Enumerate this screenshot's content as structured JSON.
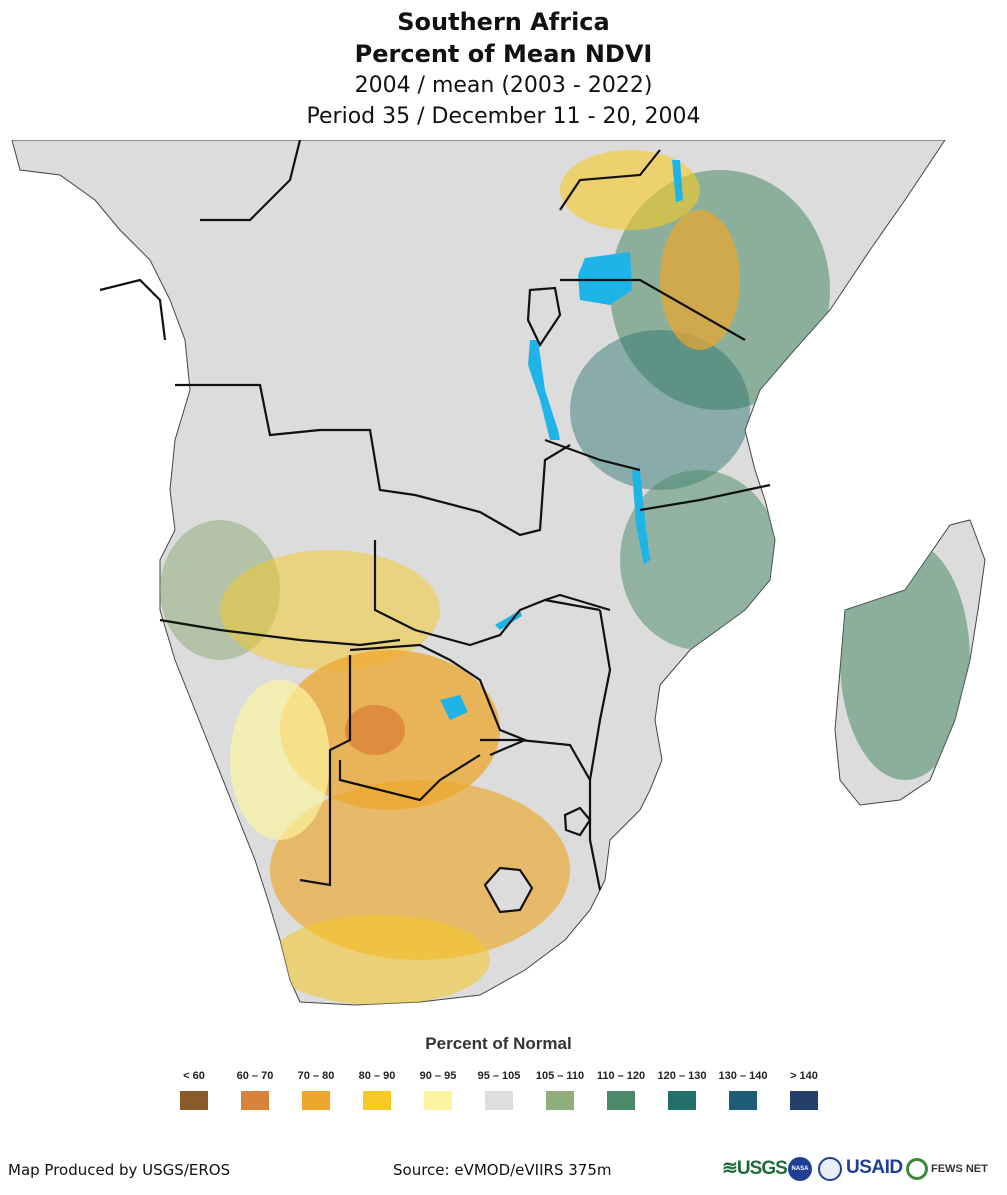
{
  "header": {
    "region": "Southern Africa",
    "product": "Percent of Mean NDVI",
    "comparison": "2004 / mean (2003 - 2022)",
    "period": "Period 35 / December 11 - 20, 2004"
  },
  "legend": {
    "title": "Percent of Normal",
    "items": [
      {
        "label": "< 60",
        "color": "#8b5a2b"
      },
      {
        "label": "60 – 70",
        "color": "#d9823b"
      },
      {
        "label": "70 – 80",
        "color": "#eda72c"
      },
      {
        "label": "80 – 90",
        "color": "#f6c924"
      },
      {
        "label": "90 – 95",
        "color": "#fbf3a0"
      },
      {
        "label": "95 – 105",
        "color": "#dedede"
      },
      {
        "label": "105 – 110",
        "color": "#8fae7c"
      },
      {
        "label": "110 – 120",
        "color": "#4a8a68"
      },
      {
        "label": "120 – 130",
        "color": "#236f6a"
      },
      {
        "label": "130 – 140",
        "color": "#1e5c78"
      },
      {
        "label": "> 140",
        "color": "#263e6b"
      }
    ]
  },
  "map": {
    "water_color": "#1eb4e8",
    "land_base_color": "#dcdcdc",
    "border_color": "#111111"
  },
  "footer": {
    "producer": "Map Produced by USGS/EROS",
    "source": "Source: eVMOD/eVIIRS 375m",
    "logos": {
      "usgs": "≋USGS",
      "nasa": "NASA",
      "usaid": "USAID",
      "fews": "FEWS NET"
    }
  }
}
